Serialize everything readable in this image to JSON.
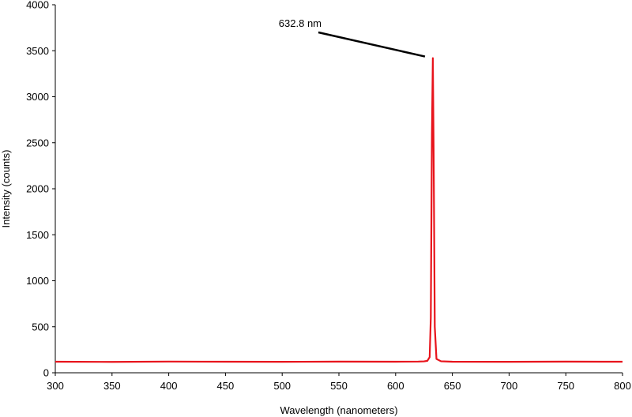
{
  "chart_data": {
    "type": "line",
    "title": "",
    "xlabel": "Wavelength (nanometers)",
    "ylabel": "Intensity (counts)",
    "xlim": [
      300,
      800
    ],
    "ylim": [
      0,
      4000
    ],
    "xticks": [
      300,
      350,
      400,
      450,
      500,
      550,
      600,
      650,
      700,
      750,
      800
    ],
    "yticks": [
      0,
      500,
      1000,
      1500,
      2000,
      2500,
      3000,
      3500,
      4000
    ],
    "grid": false,
    "legend": "none",
    "series": [
      {
        "color": "#e8141c",
        "x": [
          300,
          350,
          400,
          450,
          500,
          550,
          600,
          620,
          625,
          628,
          630,
          631,
          632,
          632.8,
          633.5,
          634.5,
          636,
          640,
          650,
          700,
          750,
          800
        ],
        "y": [
          120,
          118,
          122,
          120,
          119,
          121,
          120,
          122,
          124,
          130,
          170,
          600,
          2600,
          3420,
          2400,
          500,
          150,
          125,
          120,
          119,
          121,
          120
        ]
      }
    ],
    "annotations": [
      {
        "text": "632.8 nm",
        "x": 632.8,
        "y": 3420
      }
    ]
  }
}
